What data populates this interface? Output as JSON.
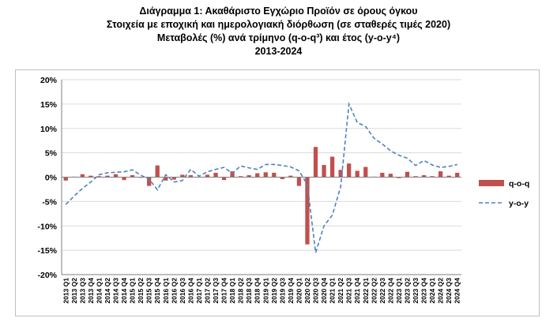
{
  "chart_data": {
    "type": "bar+line",
    "title_lines": [
      "Διάγραμμα 1: Ακαθάριστο Εγχώριο Προϊόν σε όρους όγκου",
      "Στοιχεία με εποχική και ημερολογιακή διόρθωση (σε σταθερές τιμές 2020)",
      "Μεταβολές (%) ανά τρίμηνο (q-o-q³) και έτος (y-o-y⁴)",
      "2013-2024"
    ],
    "xlabel": "",
    "ylabel": "",
    "ylim": [
      -20,
      20
    ],
    "yticks": [
      "20%",
      "15%",
      "10%",
      "5%",
      "0%",
      "-5%",
      "-10%",
      "-15%",
      "-20%"
    ],
    "ytick_values": [
      20,
      15,
      10,
      5,
      0,
      -5,
      -10,
      -15,
      -20
    ],
    "grid": "horizontal",
    "legend_position": "right",
    "categories": [
      "2013 Q1",
      "2013 Q2",
      "2013 Q3",
      "2013 Q4",
      "2014 Q1",
      "2014 Q2",
      "2014 Q3",
      "2014 Q4",
      "2015 Q1",
      "2015 Q2",
      "2015 Q3",
      "2015 Q4",
      "2016 Q1",
      "2016 Q2",
      "2016 Q3",
      "2016 Q4",
      "2017 Q1",
      "2017 Q2",
      "2017 Q3",
      "2017 Q4",
      "2018 Q1",
      "2018 Q2",
      "2018 Q3",
      "2018 Q4",
      "2019 Q1",
      "2019 Q2",
      "2019 Q3",
      "2019 Q4",
      "2020 Q1",
      "2020 Q2",
      "2020 Q3",
      "2020 Q4",
      "2021 Q1",
      "2021 Q2",
      "2021 Q3",
      "2021 Q4",
      "2022 Q1",
      "2022 Q2",
      "2022 Q3",
      "2022 Q4",
      "2023 Q1",
      "2023 Q2",
      "2023 Q3",
      "2023 Q4",
      "2024 Q1",
      "2024 Q2",
      "2024 Q3",
      "2024 Q4"
    ],
    "series": [
      {
        "name": "q-o-q",
        "type": "bar",
        "color": "#c0504d",
        "values": [
          -0.7,
          0.1,
          0.6,
          0.3,
          0.2,
          0.3,
          0.6,
          -0.6,
          0.4,
          -0.1,
          -1.8,
          2.4,
          -0.7,
          -0.5,
          0.5,
          0.4,
          0.1,
          0.5,
          0.9,
          -0.6,
          1.2,
          0.2,
          0.4,
          0.8,
          1.0,
          0.9,
          -0.4,
          0.3,
          -1.8,
          -13.8,
          6.2,
          2.5,
          4.2,
          1.5,
          2.8,
          1.3,
          2.1,
          0.1,
          0.9,
          0.7,
          -0.2,
          1.1,
          0.2,
          0.4,
          0.2,
          1.2,
          0.3,
          0.9
        ]
      },
      {
        "name": "y-o-y",
        "type": "line",
        "color": "#4f81bd",
        "style": "dashed",
        "values": [
          -5.6,
          -3.9,
          -2.3,
          -1.0,
          0.5,
          0.9,
          1.0,
          1.1,
          1.5,
          0.4,
          -0.4,
          -2.6,
          0.5,
          -1.0,
          -0.7,
          1.6,
          0.2,
          1.1,
          1.6,
          2.0,
          0.8,
          2.3,
          1.9,
          1.6,
          2.6,
          2.6,
          2.4,
          2.1,
          1.3,
          -1.5,
          -15.5,
          -10.0,
          -7.8,
          -2.0,
          15.0,
          11.2,
          10.4,
          8.0,
          6.8,
          5.4,
          4.5,
          3.9,
          2.4,
          3.4,
          2.5,
          2.0,
          2.2,
          2.6
        ]
      }
    ]
  }
}
